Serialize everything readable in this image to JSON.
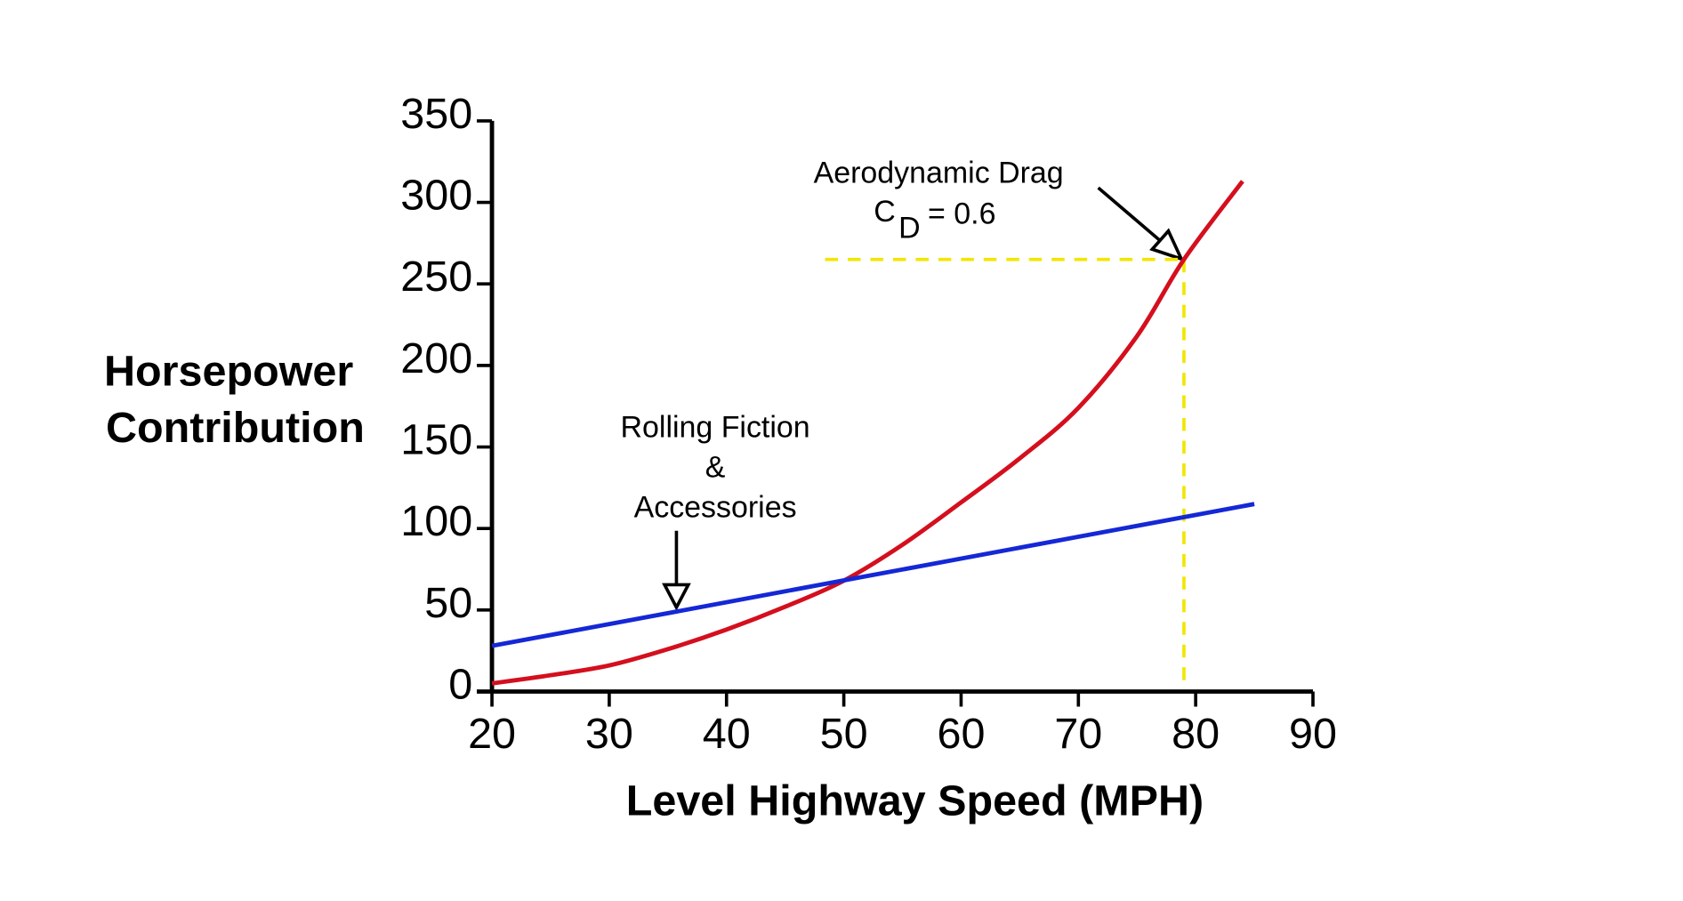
{
  "chart_data": {
    "type": "line",
    "ylabel": [
      "Horsepower",
      "Contribution"
    ],
    "xlabel": "Level Highway Speed (MPH)",
    "xlim": [
      20,
      90
    ],
    "ylim": [
      0,
      350
    ],
    "xticks": [
      20,
      30,
      40,
      50,
      60,
      70,
      80,
      90
    ],
    "yticks": [
      0,
      50,
      100,
      150,
      200,
      250,
      300,
      350
    ],
    "series": [
      {
        "color": "#d40f1e",
        "x": [
          20,
          25,
          30,
          35,
          40,
          45,
          50,
          55,
          60,
          65,
          70,
          75,
          79,
          84
        ],
        "y": [
          5,
          10,
          16,
          26,
          38,
          52,
          68,
          90,
          116,
          143,
          174,
          218,
          265,
          313
        ]
      },
      {
        "color": "#1428d6",
        "x": [
          20,
          85
        ],
        "y": [
          28,
          115
        ]
      }
    ],
    "reference": {
      "x": 79,
      "y": 265,
      "x_from": 48.4,
      "color": "#f2e600"
    },
    "annotations": {
      "drag": {
        "line1": "Aerodynamic Drag",
        "c": "C",
        "sub": "D",
        "rest": "= 0.6"
      },
      "rolling": [
        "Rolling Fiction",
        "&",
        "Accessories"
      ]
    }
  }
}
